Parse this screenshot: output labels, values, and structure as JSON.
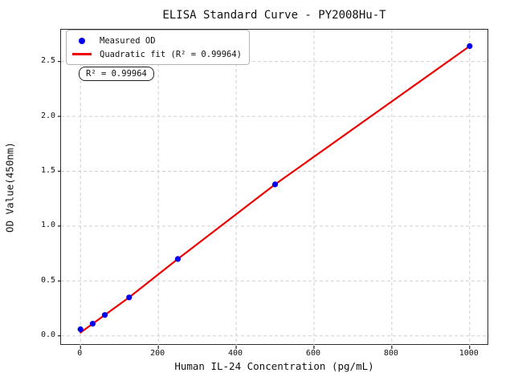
{
  "colors": {
    "measured_points": "#0000ee",
    "fit_line": "#ee0000",
    "grid": "#cfcfcf",
    "spine": "#2b2b2b",
    "background": "#ffffff"
  },
  "chart_data": {
    "type": "scatter",
    "title": "ELISA Standard Curve - PY2008Hu-T",
    "xlabel": "Human IL-24 Concentration (pg/mL)",
    "ylabel": "OD Value(450nm)",
    "xlim": [
      -50,
      1050
    ],
    "ylim": [
      -0.09,
      2.79
    ],
    "x_ticks": [
      0,
      200,
      400,
      600,
      800,
      1000
    ],
    "x_tick_labels": [
      "0",
      "200",
      "400",
      "600",
      "800",
      "1000"
    ],
    "y_ticks": [
      0,
      0.5,
      1,
      1.5,
      2,
      2.5
    ],
    "y_tick_labels": [
      "0.0",
      "0.5",
      "1.0",
      "1.5",
      "2.0",
      "2.5"
    ],
    "grid": true,
    "legend_position": "upper left",
    "r_squared": 0.99964,
    "annotation": {
      "text": "R² = 0.99964"
    },
    "series": [
      {
        "name": "Measured OD",
        "type": "scatter",
        "marker": "circle",
        "color": "#0000ee",
        "points": [
          [
            0,
            0.06
          ],
          [
            31.25,
            0.11
          ],
          [
            62.5,
            0.19
          ],
          [
            125,
            0.35
          ],
          [
            250,
            0.7
          ],
          [
            500,
            1.38
          ],
          [
            1000,
            2.64
          ]
        ]
      },
      {
        "name": "Quadratic fit (R² = 0.99964)",
        "type": "line",
        "color": "#ee0000",
        "points": [
          [
            0,
            0.03
          ],
          [
            31.25,
            0.11
          ],
          [
            62.5,
            0.19
          ],
          [
            125,
            0.35
          ],
          [
            250,
            0.7
          ],
          [
            500,
            1.38
          ],
          [
            1000,
            2.64
          ]
        ]
      }
    ]
  }
}
